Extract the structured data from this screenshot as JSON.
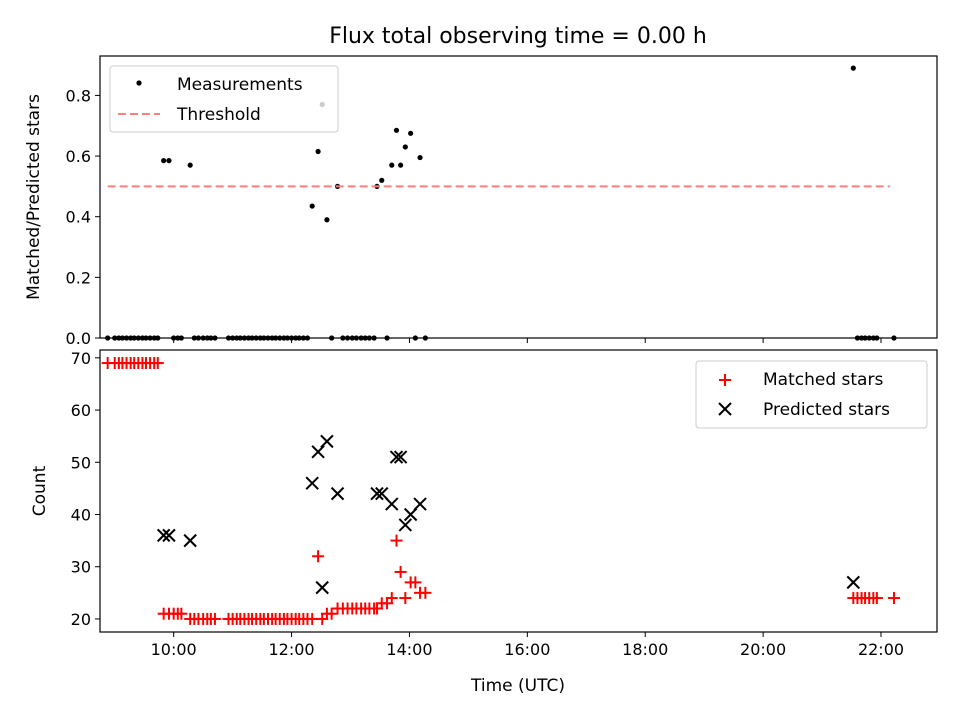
{
  "chart_data": [
    {
      "type": "scatter",
      "title": "Flux total observing time = 0.00 h",
      "xlabel": "",
      "ylabel": "Matched/Predicted stars",
      "xlim": [
        8.75,
        22.95
      ],
      "ylim": [
        0,
        0.93
      ],
      "yticks": [
        "0.0",
        "0.2",
        "0.4",
        "0.6",
        "0.8"
      ],
      "ytick_values": [
        0,
        0.2,
        0.4,
        0.6,
        0.8
      ],
      "legend_position": "top-left",
      "series": [
        {
          "name": "Measurements",
          "marker": "dot",
          "color": "#000000",
          "points": [
            [
              8.88,
              0
            ],
            [
              9.0,
              0
            ],
            [
              9.07,
              0
            ],
            [
              9.13,
              0
            ],
            [
              9.2,
              0
            ],
            [
              9.27,
              0
            ],
            [
              9.33,
              0
            ],
            [
              9.4,
              0
            ],
            [
              9.47,
              0
            ],
            [
              9.53,
              0
            ],
            [
              9.6,
              0
            ],
            [
              9.67,
              0
            ],
            [
              9.73,
              0
            ],
            [
              9.83,
              0.585
            ],
            [
              9.92,
              0.585
            ],
            [
              10.0,
              0
            ],
            [
              10.07,
              0
            ],
            [
              10.13,
              0
            ],
            [
              10.28,
              0.57
            ],
            [
              10.35,
              0
            ],
            [
              10.42,
              0
            ],
            [
              10.5,
              0
            ],
            [
              10.57,
              0
            ],
            [
              10.63,
              0
            ],
            [
              10.7,
              0
            ],
            [
              10.93,
              0
            ],
            [
              11.0,
              0
            ],
            [
              11.07,
              0
            ],
            [
              11.13,
              0
            ],
            [
              11.2,
              0
            ],
            [
              11.27,
              0
            ],
            [
              11.33,
              0
            ],
            [
              11.4,
              0
            ],
            [
              11.47,
              0
            ],
            [
              11.53,
              0
            ],
            [
              11.6,
              0
            ],
            [
              11.67,
              0
            ],
            [
              11.73,
              0
            ],
            [
              11.8,
              0
            ],
            [
              11.87,
              0
            ],
            [
              11.93,
              0
            ],
            [
              12.0,
              0
            ],
            [
              12.07,
              0
            ],
            [
              12.13,
              0
            ],
            [
              12.2,
              0
            ],
            [
              12.27,
              0
            ],
            [
              12.35,
              0.435
            ],
            [
              12.45,
              0.615
            ],
            [
              12.52,
              0.77
            ],
            [
              12.6,
              0.39
            ],
            [
              12.68,
              0
            ],
            [
              12.78,
              0.5
            ],
            [
              12.87,
              0
            ],
            [
              12.95,
              0
            ],
            [
              13.03,
              0
            ],
            [
              13.1,
              0
            ],
            [
              13.18,
              0
            ],
            [
              13.25,
              0
            ],
            [
              13.32,
              0
            ],
            [
              13.4,
              0
            ],
            [
              13.45,
              0.5
            ],
            [
              13.53,
              0.52
            ],
            [
              13.62,
              0
            ],
            [
              13.7,
              0.57
            ],
            [
              13.78,
              0.685
            ],
            [
              13.85,
              0.57
            ],
            [
              13.93,
              0.63
            ],
            [
              14.02,
              0.675
            ],
            [
              14.1,
              0
            ],
            [
              14.18,
              0.595
            ],
            [
              14.27,
              0
            ],
            [
              21.53,
              0.89
            ],
            [
              21.6,
              0
            ],
            [
              21.67,
              0
            ],
            [
              21.73,
              0
            ],
            [
              21.8,
              0
            ],
            [
              21.87,
              0
            ],
            [
              21.93,
              0
            ],
            [
              22.22,
              0
            ]
          ]
        },
        {
          "name": "Threshold",
          "type": "line",
          "style": "dashed",
          "color": "#ff7f7f",
          "points": [
            [
              8.88,
              0.5
            ],
            [
              22.15,
              0.5
            ]
          ]
        }
      ]
    },
    {
      "type": "scatter",
      "title": "",
      "xlabel": "Time (UTC)",
      "ylabel": "Count",
      "xlim": [
        8.75,
        22.95
      ],
      "ylim": [
        17.5,
        71.5
      ],
      "xticks": [
        "10:00",
        "12:00",
        "14:00",
        "16:00",
        "18:00",
        "20:00",
        "22:00"
      ],
      "xtick_values": [
        10,
        12,
        14,
        16,
        18,
        20,
        22
      ],
      "yticks": [
        "20",
        "30",
        "40",
        "50",
        "60",
        "70"
      ],
      "ytick_values": [
        20,
        30,
        40,
        50,
        60,
        70
      ],
      "legend_position": "top-right",
      "series": [
        {
          "name": "Matched stars",
          "marker": "plus",
          "color": "#ff0000",
          "points": [
            [
              8.88,
              69
            ],
            [
              9.0,
              69
            ],
            [
              9.07,
              69
            ],
            [
              9.13,
              69
            ],
            [
              9.2,
              69
            ],
            [
              9.27,
              69
            ],
            [
              9.33,
              69
            ],
            [
              9.4,
              69
            ],
            [
              9.47,
              69
            ],
            [
              9.53,
              69
            ],
            [
              9.6,
              69
            ],
            [
              9.67,
              69
            ],
            [
              9.73,
              69
            ],
            [
              9.83,
              21
            ],
            [
              9.92,
              21
            ],
            [
              10.0,
              21
            ],
            [
              10.07,
              21
            ],
            [
              10.13,
              21
            ],
            [
              10.28,
              20
            ],
            [
              10.35,
              20
            ],
            [
              10.42,
              20
            ],
            [
              10.5,
              20
            ],
            [
              10.57,
              20
            ],
            [
              10.63,
              20
            ],
            [
              10.7,
              20
            ],
            [
              10.93,
              20
            ],
            [
              11.0,
              20
            ],
            [
              11.07,
              20
            ],
            [
              11.13,
              20
            ],
            [
              11.2,
              20
            ],
            [
              11.27,
              20
            ],
            [
              11.33,
              20
            ],
            [
              11.4,
              20
            ],
            [
              11.47,
              20
            ],
            [
              11.53,
              20
            ],
            [
              11.6,
              20
            ],
            [
              11.67,
              20
            ],
            [
              11.73,
              20
            ],
            [
              11.8,
              20
            ],
            [
              11.87,
              20
            ],
            [
              11.93,
              20
            ],
            [
              12.0,
              20
            ],
            [
              12.07,
              20
            ],
            [
              12.13,
              20
            ],
            [
              12.2,
              20
            ],
            [
              12.27,
              20
            ],
            [
              12.35,
              20
            ],
            [
              12.45,
              32
            ],
            [
              12.52,
              20
            ],
            [
              12.6,
              21
            ],
            [
              12.68,
              21
            ],
            [
              12.78,
              22
            ],
            [
              12.87,
              22
            ],
            [
              12.95,
              22
            ],
            [
              13.03,
              22
            ],
            [
              13.1,
              22
            ],
            [
              13.18,
              22
            ],
            [
              13.25,
              22
            ],
            [
              13.32,
              22
            ],
            [
              13.4,
              22
            ],
            [
              13.45,
              22
            ],
            [
              13.53,
              23
            ],
            [
              13.62,
              23
            ],
            [
              13.7,
              24
            ],
            [
              13.78,
              35
            ],
            [
              13.85,
              29
            ],
            [
              13.93,
              24
            ],
            [
              14.02,
              27
            ],
            [
              14.1,
              27
            ],
            [
              14.18,
              25
            ],
            [
              14.27,
              25
            ],
            [
              21.53,
              24
            ],
            [
              21.6,
              24
            ],
            [
              21.67,
              24
            ],
            [
              21.73,
              24
            ],
            [
              21.8,
              24
            ],
            [
              21.87,
              24
            ],
            [
              21.93,
              24
            ],
            [
              22.22,
              24
            ]
          ]
        },
        {
          "name": "Predicted stars",
          "marker": "x",
          "color": "#000000",
          "points": [
            [
              9.83,
              36
            ],
            [
              9.92,
              36
            ],
            [
              10.28,
              35
            ],
            [
              12.35,
              46
            ],
            [
              12.45,
              52
            ],
            [
              12.52,
              26
            ],
            [
              12.6,
              54
            ],
            [
              12.78,
              44
            ],
            [
              13.45,
              44
            ],
            [
              13.53,
              44
            ],
            [
              13.7,
              42
            ],
            [
              13.78,
              51
            ],
            [
              13.85,
              51
            ],
            [
              13.93,
              38
            ],
            [
              14.02,
              40
            ],
            [
              14.18,
              42
            ],
            [
              21.53,
              27
            ]
          ]
        }
      ]
    }
  ]
}
